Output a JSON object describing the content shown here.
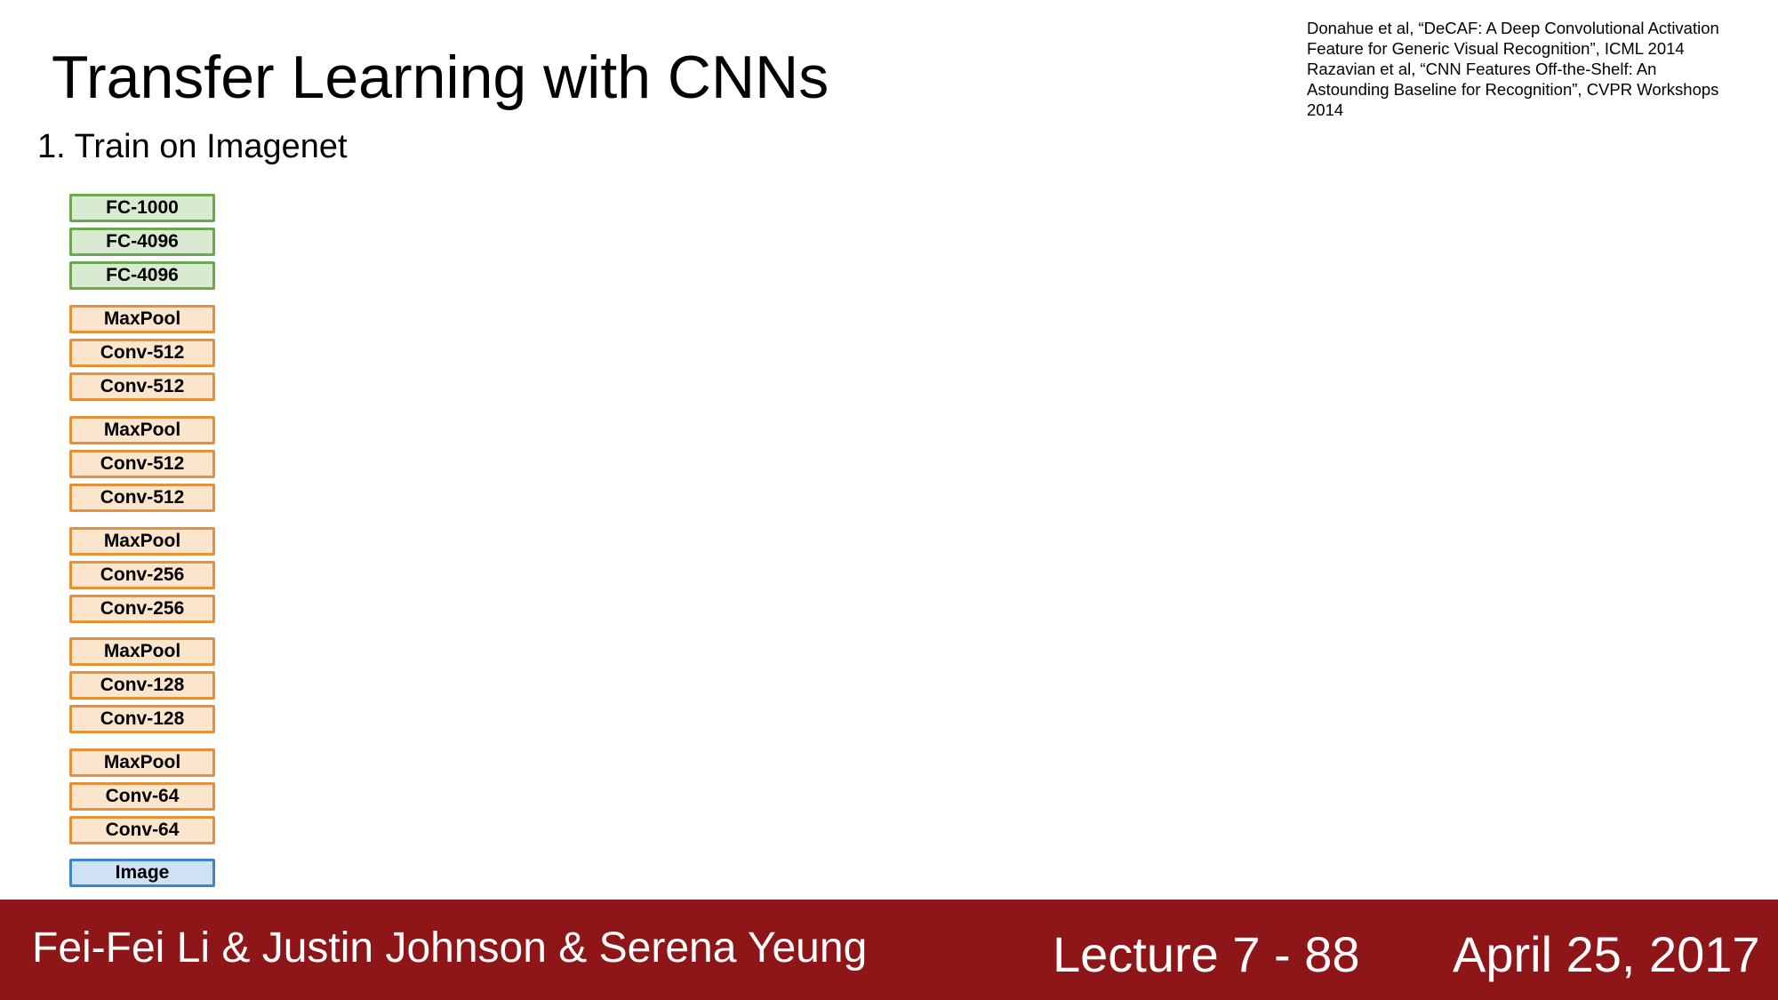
{
  "slide": {
    "title": "Transfer Learning with CNNs",
    "subtitle": "1. Train on Imagenet"
  },
  "references": [
    "Donahue et al, “DeCAF: A Deep Convolutional Activation",
    "Feature for Generic Visual Recognition”, ICML 2014",
    "Razavian et al, “CNN Features Off-the-Shelf: An",
    "Astounding Baseline for Recognition”, CVPR Workshops",
    "2014"
  ],
  "network": {
    "layers": [
      {
        "label": "FC-1000",
        "kind": "fc"
      },
      {
        "label": "FC-4096",
        "kind": "fc"
      },
      {
        "label": "FC-4096",
        "kind": "fc"
      },
      {
        "label": "MaxPool",
        "kind": "conv"
      },
      {
        "label": "Conv-512",
        "kind": "conv"
      },
      {
        "label": "Conv-512",
        "kind": "conv"
      },
      {
        "label": "MaxPool",
        "kind": "conv"
      },
      {
        "label": "Conv-512",
        "kind": "conv"
      },
      {
        "label": "Conv-512",
        "kind": "conv"
      },
      {
        "label": "MaxPool",
        "kind": "conv"
      },
      {
        "label": "Conv-256",
        "kind": "conv"
      },
      {
        "label": "Conv-256",
        "kind": "conv"
      },
      {
        "label": "MaxPool",
        "kind": "conv"
      },
      {
        "label": "Conv-128",
        "kind": "conv"
      },
      {
        "label": "Conv-128",
        "kind": "conv"
      },
      {
        "label": "MaxPool",
        "kind": "conv"
      },
      {
        "label": "Conv-64",
        "kind": "conv"
      },
      {
        "label": "Conv-64",
        "kind": "conv"
      },
      {
        "label": "Image",
        "kind": "img"
      }
    ],
    "colors": {
      "fc_fill": "#d9ead3",
      "fc_border": "#6aa84f",
      "conv_fill": "#fce5cd",
      "conv_border": "#e69138",
      "img_fill": "#cfe2f3",
      "img_border": "#3d85c6"
    }
  },
  "footer": {
    "authors": "Fei-Fei Li & Justin Johnson & Serena Yeung",
    "lecture": "Lecture 7 - 88",
    "date": "April 25, 2017",
    "background": "#8f1618"
  }
}
